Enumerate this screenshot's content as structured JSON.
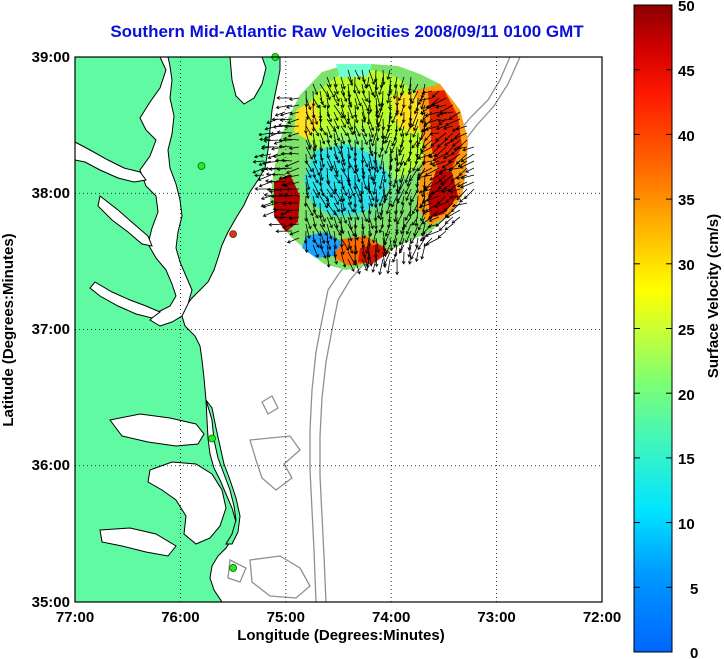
{
  "title": "Southern Mid-Atlantic Raw Velocities 2008/09/11 0100 GMT",
  "map": {
    "type": "current-field",
    "x_axis_label": "Longitude (Degrees:Minutes)",
    "y_axis_label": "Latitude (Degrees:Minutes)",
    "x_ticks": [
      "77:00",
      "76:00",
      "75:00",
      "74:00",
      "73:00",
      "72:00"
    ],
    "y_ticks": [
      "39:00",
      "38:00",
      "37:00",
      "36:00",
      "35:00"
    ],
    "lon_range": [
      -77,
      -72
    ],
    "lat_range": [
      35,
      39
    ],
    "grid": "dotted",
    "land_color": "#5ffaa2",
    "coast_color": "#000000",
    "bathymetry_color": "#909090"
  },
  "colorbar": {
    "label": "Surface Velocity (cm/s)",
    "min": 0,
    "max": 50,
    "ticks": [
      "50",
      "45",
      "40",
      "35",
      "30",
      "25",
      "20",
      "15",
      "10",
      "5",
      "0"
    ]
  },
  "stations": [
    {
      "lon": -75.1,
      "lat": 39.0
    },
    {
      "lon": -75.8,
      "lat": 38.2
    },
    {
      "lon": -75.5,
      "lat": 37.7
    },
    {
      "lon": -75.7,
      "lat": 36.2
    },
    {
      "lon": -75.5,
      "lat": 35.25
    }
  ]
}
